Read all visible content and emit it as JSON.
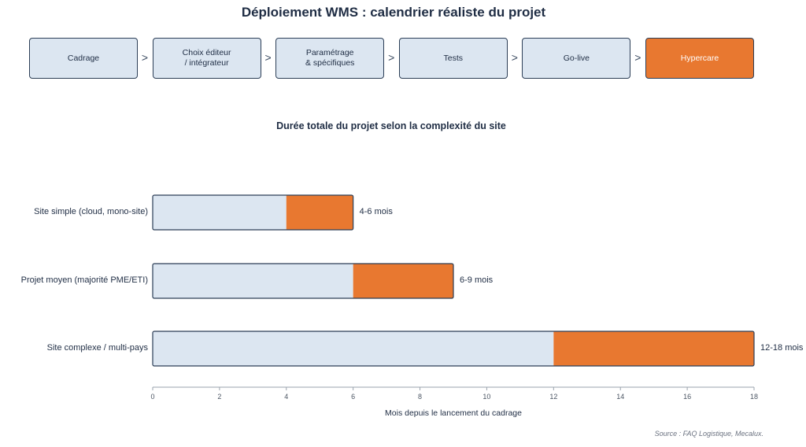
{
  "title": "Déploiement WMS : calendrier réaliste du projet",
  "phases": [
    {
      "label": "Cadrage",
      "active": false
    },
    {
      "label": "Choix éditeur\n/ intégrateur",
      "active": false
    },
    {
      "label": "Paramétrage\n& spécifiques",
      "active": false
    },
    {
      "label": "Tests",
      "active": false
    },
    {
      "label": "Go-live",
      "active": false
    },
    {
      "label": "Hypercare",
      "active": true
    }
  ],
  "arrow_glyph": ">",
  "source": "Source : FAQ Logistique, Mecalux.",
  "colors": {
    "bar_base": "#dce6f1",
    "bar_extra": "#e87830",
    "border": "#2c3e56",
    "text": "#1f2d44"
  },
  "chart_data": {
    "type": "bar",
    "orientation": "horizontal",
    "stacked": true,
    "title": "Durée totale du projet selon la complexité du site",
    "xlabel": "Mois depuis le lancement du cadrage",
    "ylabel": "",
    "xlim": [
      0,
      18
    ],
    "xticks": [
      0,
      2,
      4,
      6,
      8,
      10,
      12,
      14,
      16,
      18
    ],
    "grid": false,
    "categories": [
      "Site simple (cloud, mono-site)",
      "Projet moyen (majorité PME/ETI)",
      "Site complexe / multi-pays"
    ],
    "series": [
      {
        "values": [
          4,
          6,
          12
        ],
        "color": "#dce6f1"
      },
      {
        "values": [
          2,
          3,
          6
        ],
        "color": "#e87830"
      }
    ],
    "data_labels": [
      "4-6 mois",
      "6-9 mois",
      "12-18 mois"
    ]
  }
}
